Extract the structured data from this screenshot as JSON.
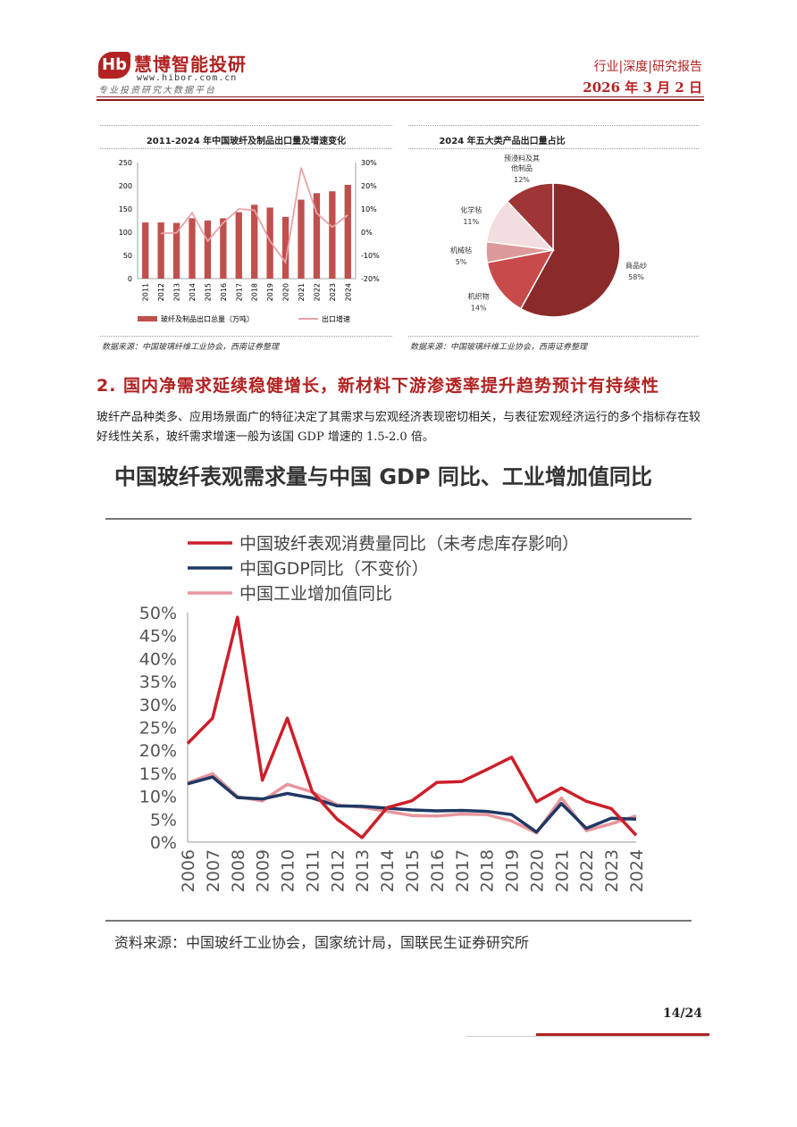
{
  "header": {
    "logo_mark": "Hb",
    "logo_name": "慧博智能投研",
    "logo_url": "www.hibor.com.cn",
    "logo_slogan": "专业投资研究大数据平台",
    "report_type": "行业|深度|研究报告",
    "date": "2026 年 3 月 2 日"
  },
  "chart1": {
    "title": "2011-2024 年中国玻纤及制品出口量及增速变化",
    "source": "数据来源：中国玻璃纤维工业协会，西南证券整理"
  },
  "chart2": {
    "title": "2024 年五大类产品出口量占比",
    "source": "数据来源：中国玻璃纤维工业协会，西南证券整理"
  },
  "section": {
    "title": "2. 国内净需求延续稳健增长，新材料下游渗透率提升趋势预计有持续性",
    "body": "玻纤产品种类多、应用场景面广的特征决定了其需求与宏观经济表现密切相关，与表征宏观经济运行的多个指标存在较好线性关系，玻纤需求增速一般为该国 GDP 增速的 1.5-2.0 倍。"
  },
  "chart3": {
    "title": "中国玻纤表观需求量与中国 GDP 同比、工业增加值同比",
    "source": "资料来源：中国玻纤工业协会，国家统计局，国联民生证券研究所"
  },
  "footer": {
    "page": "14/24"
  },
  "chart_data": [
    {
      "type": "bar",
      "categories": [
        "2011",
        "2012",
        "2013",
        "2014",
        "2015",
        "2016",
        "2017",
        "2018",
        "2019",
        "2020",
        "2021",
        "2022",
        "2023",
        "2024"
      ],
      "series": [
        {
          "name": "玻纤及制品出口总量（万吨）",
          "type": "bar",
          "axis": "left",
          "color": "#c0504d",
          "values": [
            121,
            121,
            120,
            130,
            125,
            130,
            143,
            159,
            153,
            133,
            170,
            184,
            188,
            202
          ]
        },
        {
          "name": "出口增速",
          "type": "line",
          "axis": "right",
          "color": "#e8a3a8",
          "values": [
            null,
            -0.5,
            -0.3,
            8.3,
            -3.8,
            4.0,
            10.0,
            9.5,
            -3.8,
            -13.0,
            27.8,
            8.2,
            2.2,
            7.4
          ]
        }
      ],
      "ylim_left": [
        0,
        250
      ],
      "yticks_left": [
        "250",
        "200",
        "150",
        "100",
        "50",
        "0"
      ],
      "ylim_right": [
        -20,
        30
      ],
      "yticks_right": [
        "30%",
        "20%",
        "10%",
        "0%",
        "-10%",
        "-20%"
      ]
    },
    {
      "type": "pie",
      "slices": [
        {
          "label": "商品纱",
          "pct": "58%",
          "value": 58,
          "color": "#8b2a2a"
        },
        {
          "label": "机织物",
          "pct": "14%",
          "value": 14,
          "color": "#c84a4a"
        },
        {
          "label": "机械毡",
          "pct": "5%",
          "value": 5,
          "color": "#dd9a9a"
        },
        {
          "label": "化学毡",
          "pct": "11%",
          "value": 11,
          "color": "#f2dede"
        },
        {
          "label": "预浸料及其他制品",
          "pct": "12%",
          "value": 12,
          "color": "#9e3636"
        }
      ],
      "label_lines": {
        "0": [
          "商品纱"
        ],
        "1": [
          "机织物"
        ],
        "2": [
          "机械毡"
        ],
        "3": [
          "化学毡"
        ],
        "4": [
          "预浸料及其",
          "他制品"
        ]
      }
    },
    {
      "type": "line",
      "x": [
        "2006",
        "2007",
        "2008",
        "2009",
        "2010",
        "2011",
        "2012",
        "2013",
        "2014",
        "2015",
        "2016",
        "2017",
        "2018",
        "2019",
        "2020",
        "2021",
        "2022",
        "2023",
        "2024"
      ],
      "series": [
        {
          "name": "中国玻纤表观消费量同比（未考虑库存影响）",
          "color": "#cc1f2a",
          "values": [
            21.5,
            27,
            49,
            13.5,
            27,
            11,
            5,
            1,
            7.5,
            9,
            13,
            13.2,
            15.8,
            18.5,
            8.8,
            11.8,
            8.9,
            7.3,
            1.5
          ]
        },
        {
          "name": "中国GDP同比（不变价）",
          "color": "#1f3864",
          "values": [
            12.7,
            14.2,
            9.7,
            9.4,
            10.6,
            9.6,
            7.9,
            7.8,
            7.4,
            7.0,
            6.8,
            6.9,
            6.7,
            6.0,
            2.2,
            8.4,
            3.0,
            5.2,
            5.0
          ]
        },
        {
          "name": "中国工业增加值同比",
          "color": "#e8959c",
          "values": [
            12.9,
            14.9,
            9.9,
            9.0,
            12.6,
            10.9,
            8.1,
            7.6,
            6.7,
            5.8,
            5.7,
            6.1,
            6.0,
            4.6,
            2.0,
            9.6,
            2.5,
            4.0,
            5.7
          ]
        }
      ],
      "ylim": [
        0,
        50
      ],
      "yticks": [
        "0%",
        "5%",
        "10%",
        "15%",
        "20%",
        "25%",
        "30%",
        "35%",
        "40%",
        "45%",
        "50%"
      ]
    }
  ]
}
